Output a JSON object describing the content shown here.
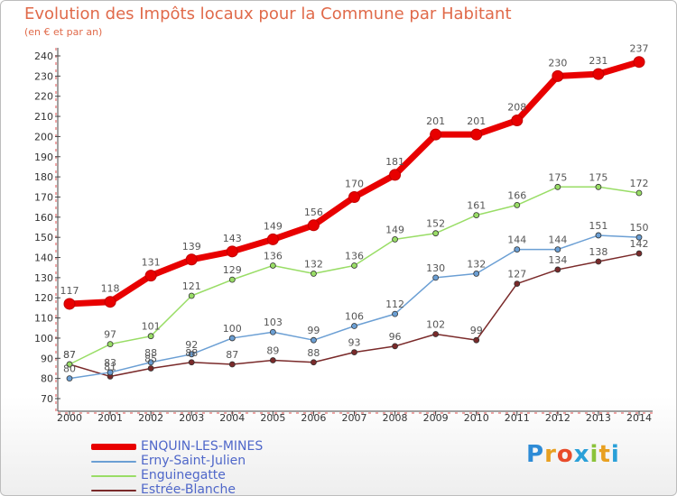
{
  "title": "Evolution des Impôts locaux pour la Commune par Habitant",
  "subtitle": "(en € et par an)",
  "logo": {
    "text": "Proxiti",
    "letter_colors": [
      "#2e8bd6",
      "#e8a020",
      "#e84b2a",
      "#2aa0d8",
      "#8bc33a",
      "#e8a020",
      "#2aa0d8"
    ]
  },
  "chart_data": {
    "type": "line",
    "x": [
      2000,
      2001,
      2002,
      2003,
      2004,
      2005,
      2006,
      2007,
      2008,
      2009,
      2010,
      2011,
      2012,
      2013,
      2014
    ],
    "ylim": [
      70,
      240
    ],
    "yticks": [
      70,
      80,
      90,
      100,
      110,
      120,
      130,
      140,
      150,
      160,
      170,
      180,
      190,
      200,
      210,
      220,
      230,
      240
    ],
    "grid": false,
    "legend_position": "bottom-left",
    "series": [
      {
        "name": "ENQUIN-LES-MINES",
        "color": "#e80000",
        "values": [
          117,
          118,
          131,
          139,
          143,
          149,
          156,
          170,
          181,
          201,
          201,
          208,
          230,
          231,
          237
        ]
      },
      {
        "name": "Erny-Saint-Julien",
        "color": "#6b9fd4",
        "values": [
          80,
          83,
          88,
          92,
          100,
          103,
          99,
          106,
          112,
          130,
          132,
          144,
          144,
          151,
          150
        ]
      },
      {
        "name": "Enguinegatte",
        "color": "#99dd66",
        "values": [
          87,
          97,
          101,
          121,
          129,
          136,
          132,
          136,
          149,
          152,
          161,
          166,
          175,
          175,
          172
        ]
      },
      {
        "name": "Estrée-Blanche",
        "color": "#7a2a2a",
        "values": [
          87,
          81,
          85,
          88,
          87,
          89,
          88,
          93,
          96,
          102,
          99,
          127,
          134,
          138,
          142
        ]
      }
    ]
  }
}
